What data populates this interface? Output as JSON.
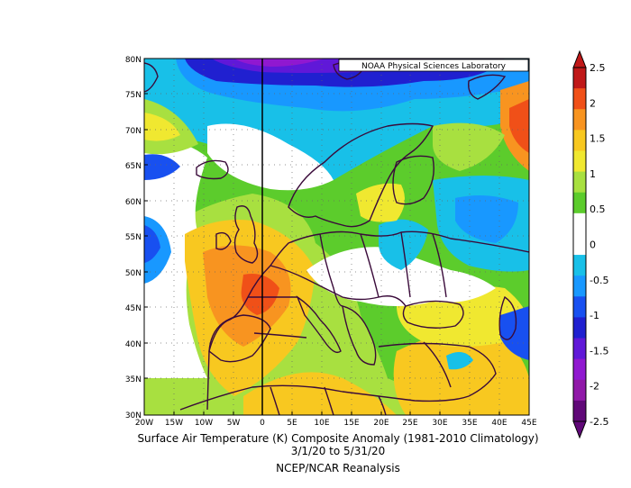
{
  "header": {
    "credit": "NOAA Physical Sciences Laboratory"
  },
  "map": {
    "lon_labels": [
      "20W",
      "15W",
      "10W",
      "5W",
      "0",
      "5E",
      "10E",
      "15E",
      "20E",
      "25E",
      "30E",
      "35E",
      "40E",
      "45E"
    ],
    "lat_labels": [
      "80N",
      "75N",
      "70N",
      "65N",
      "60N",
      "55N",
      "50N",
      "45N",
      "40N",
      "35N",
      "30N"
    ],
    "land_color": "#0f0f0f",
    "meridian_color": "#000000"
  },
  "colorbar": {
    "labels": [
      "2.5",
      "2",
      "1.5",
      "1",
      "0.5",
      "0",
      "-0.5",
      "-1",
      "-1.5",
      "-2",
      "-2.5"
    ],
    "colors": [
      "#c01818",
      "#f05018",
      "#f89420",
      "#f8c820",
      "#f0e830",
      "#a8e040",
      "#5ccc2c",
      "#ffffff",
      "#ffffff",
      "#18c0e8",
      "#1898ff",
      "#1850f0",
      "#2020d0",
      "#6018d8",
      "#9018d0",
      "#9018a8",
      "#600878"
    ],
    "bottom_arrow_color": "#600878",
    "top_arrow_color": "#c01818"
  },
  "caption": {
    "line1": "Surface Air Temperature (K) Composite Anomaly (1981-2010 Climatology)",
    "line2": "3/1/20  to 5/31/20",
    "line3": "NCEP/NCAR Reanalysis"
  }
}
